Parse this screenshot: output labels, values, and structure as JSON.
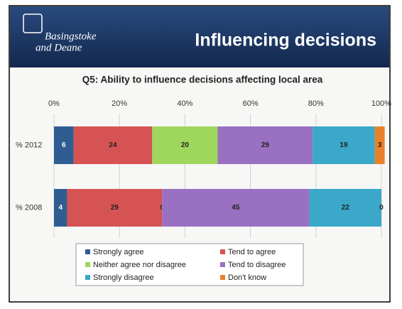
{
  "header": {
    "logo_line1": "Basingstoke",
    "logo_line2": "and Deane",
    "title": "Influencing decisions"
  },
  "chart_data": {
    "type": "stacked_bar_horizontal",
    "title": "Q5: Ability to influence decisions affecting local area",
    "categories": [
      "% 2012",
      "% 2008"
    ],
    "series": [
      {
        "name": "Strongly agree",
        "color": "#2f5d92",
        "values": [
          6,
          4
        ]
      },
      {
        "name": "Tend to agree",
        "color": "#d65353",
        "values": [
          24,
          29
        ]
      },
      {
        "name": "Neither agree nor disagree",
        "color": "#9fd65c",
        "values": [
          20,
          0
        ]
      },
      {
        "name": "Tend to disagree",
        "color": "#9a70c2",
        "values": [
          29,
          45
        ]
      },
      {
        "name": "Strongly disagree",
        "color": "#3ba7c9",
        "values": [
          19,
          22
        ]
      },
      {
        "name": "Don't know",
        "color": "#e8812a",
        "values": [
          3,
          0
        ]
      }
    ],
    "xlim": [
      0,
      100
    ],
    "xticks": [
      {
        "value": 0,
        "label": "0%"
      },
      {
        "value": 20,
        "label": "20%"
      },
      {
        "value": 40,
        "label": "40%"
      },
      {
        "value": 60,
        "label": "60%"
      },
      {
        "value": 80,
        "label": "80%"
      },
      {
        "value": 100,
        "label": "100%"
      }
    ],
    "grid": true,
    "legend": "bottom"
  }
}
